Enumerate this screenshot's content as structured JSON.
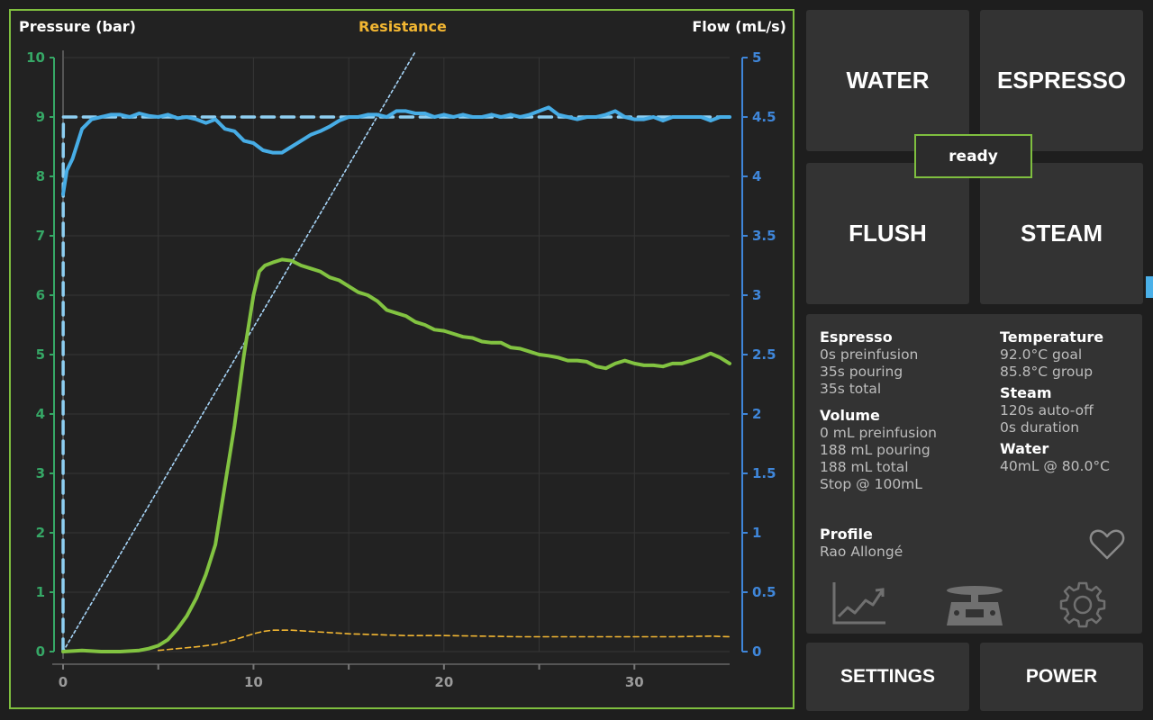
{
  "chart": {
    "left_axis_title": "Pressure (bar)",
    "center_title": "Resistance",
    "right_axis_title": "Flow (mL/s)",
    "colors": {
      "pressure": "#82c341",
      "flow": "#47ade6",
      "flow_goal": "#8ecff2",
      "weight_flow": "#a6d4f7",
      "resistance": "#f2b632",
      "left_axis": "#36a766",
      "right_axis": "#3f86d9",
      "grid": "#363636"
    }
  },
  "chart_data": {
    "type": "line",
    "xlabel": "",
    "ylabel": "Pressure (bar)",
    "y2label": "Flow (mL/s)",
    "xlim": [
      0,
      35
    ],
    "ylim": [
      0,
      10
    ],
    "y2lim": [
      0,
      5
    ],
    "xticks": [
      0,
      10,
      20,
      30
    ],
    "yticks": [
      0,
      1,
      2,
      3,
      4,
      5,
      6,
      7,
      8,
      9,
      10
    ],
    "y2ticks": [
      0,
      0.5,
      1,
      1.5,
      2,
      2.5,
      3,
      3.5,
      4,
      4.5,
      5
    ],
    "grid": true,
    "series": [
      {
        "name": "Pressure (bar)",
        "axis": "left",
        "style": "solid",
        "x": [
          0,
          1,
          2,
          3,
          4,
          4.5,
          5,
          5.5,
          6,
          6.5,
          7,
          7.5,
          8,
          8.5,
          9,
          9.5,
          10,
          10.3,
          10.6,
          11,
          11.5,
          12,
          12.5,
          13,
          13.5,
          14,
          14.5,
          15,
          15.5,
          16,
          16.5,
          17,
          17.5,
          18,
          18.5,
          19,
          19.5,
          20,
          20.5,
          21,
          21.5,
          22,
          22.5,
          23,
          23.5,
          24,
          24.5,
          25,
          25.5,
          26,
          26.5,
          27,
          27.5,
          28,
          28.5,
          29,
          29.5,
          30,
          30.5,
          31,
          31.5,
          32,
          32.5,
          33,
          33.5,
          34,
          34.5,
          35
        ],
        "y": [
          0,
          0.02,
          0,
          0,
          0.02,
          0.05,
          0.1,
          0.2,
          0.38,
          0.6,
          0.9,
          1.3,
          1.8,
          2.8,
          3.8,
          5.0,
          6.0,
          6.4,
          6.5,
          6.55,
          6.6,
          6.58,
          6.5,
          6.45,
          6.4,
          6.3,
          6.25,
          6.15,
          6.05,
          6.0,
          5.9,
          5.75,
          5.7,
          5.65,
          5.55,
          5.5,
          5.42,
          5.4,
          5.35,
          5.3,
          5.28,
          5.22,
          5.2,
          5.2,
          5.12,
          5.1,
          5.05,
          5.0,
          4.98,
          4.95,
          4.9,
          4.9,
          4.88,
          4.8,
          4.77,
          4.85,
          4.9,
          4.85,
          4.82,
          4.82,
          4.8,
          4.85,
          4.85,
          4.9,
          4.95,
          5.02,
          4.95,
          4.85
        ]
      },
      {
        "name": "Flow (mL/s)",
        "axis": "right",
        "style": "solid",
        "x": [
          0,
          0.2,
          0.5,
          0.8,
          1,
          1.5,
          2,
          2.5,
          3,
          3.5,
          4,
          4.5,
          5,
          5.5,
          6,
          6.5,
          7,
          7.5,
          8,
          8.5,
          9,
          9.5,
          10,
          10.5,
          11,
          11.5,
          12,
          12.5,
          13,
          13.5,
          14,
          14.5,
          15,
          15.5,
          16,
          16.5,
          17,
          17.5,
          18,
          18.5,
          19,
          19.5,
          20,
          20.5,
          21,
          21.5,
          22,
          22.5,
          23,
          23.5,
          24,
          24.5,
          25,
          25.5,
          26,
          26.5,
          27,
          27.5,
          28,
          28.5,
          29,
          29.5,
          30,
          30.5,
          31,
          31.5,
          32,
          32.5,
          33,
          33.5,
          34,
          34.5,
          35
        ],
        "y": [
          3.85,
          4.05,
          4.15,
          4.3,
          4.4,
          4.48,
          4.5,
          4.52,
          4.52,
          4.5,
          4.53,
          4.51,
          4.5,
          4.52,
          4.49,
          4.5,
          4.48,
          4.45,
          4.48,
          4.4,
          4.38,
          4.3,
          4.28,
          4.22,
          4.2,
          4.2,
          4.25,
          4.3,
          4.35,
          4.38,
          4.42,
          4.47,
          4.5,
          4.5,
          4.52,
          4.52,
          4.5,
          4.55,
          4.55,
          4.53,
          4.53,
          4.5,
          4.52,
          4.5,
          4.52,
          4.5,
          4.5,
          4.52,
          4.5,
          4.52,
          4.5,
          4.52,
          4.55,
          4.58,
          4.52,
          4.5,
          4.48,
          4.5,
          4.5,
          4.52,
          4.55,
          4.5,
          4.48,
          4.48,
          4.5,
          4.47,
          4.5,
          4.5,
          4.5,
          4.5,
          4.47,
          4.5,
          4.5
        ]
      },
      {
        "name": "Flow goal",
        "axis": "right",
        "style": "dashed",
        "x": [
          0,
          0.01,
          0.02,
          35
        ],
        "y": [
          0,
          4.2,
          4.5,
          4.5
        ]
      },
      {
        "name": "Weight flow",
        "axis": "left",
        "style": "dotted",
        "x": [
          0,
          18.5
        ],
        "y": [
          0,
          10.1
        ]
      },
      {
        "name": "Resistance",
        "axis": "left",
        "style": "dashed",
        "x": [
          5,
          6,
          7,
          8,
          9,
          10,
          10.5,
          11,
          12,
          13,
          14,
          15,
          16,
          18,
          20,
          22,
          24,
          26,
          28,
          30,
          32,
          34,
          35
        ],
        "y": [
          0.02,
          0.05,
          0.08,
          0.12,
          0.2,
          0.3,
          0.34,
          0.36,
          0.36,
          0.34,
          0.32,
          0.3,
          0.29,
          0.27,
          0.27,
          0.26,
          0.25,
          0.25,
          0.25,
          0.25,
          0.25,
          0.26,
          0.25
        ]
      }
    ]
  },
  "buttons": {
    "water": "WATER",
    "espresso": "ESPRESSO",
    "flush": "FLUSH",
    "steam": "STEAM",
    "settings": "SETTINGS",
    "power": "POWER"
  },
  "status": "ready",
  "info": {
    "espresso": {
      "title": "Espresso",
      "preinfusion": "0s preinfusion",
      "pouring": "35s pouring",
      "total": "35s total"
    },
    "volume": {
      "title": "Volume",
      "preinfusion": "0 mL preinfusion",
      "pouring": "188 mL pouring",
      "total": "188 mL total",
      "stop": "Stop @ 100mL"
    },
    "temperature": {
      "title": "Temperature",
      "goal": "92.0°C goal",
      "group": "85.8°C group"
    },
    "steam": {
      "title": "Steam",
      "auto_off": "120s auto-off",
      "duration": "0s duration"
    },
    "water": {
      "title": "Water",
      "setting": "40mL @ 80.0°C"
    },
    "profile": {
      "title": "Profile",
      "name": "Rao Allongé"
    }
  },
  "icons": {
    "heart": "heart-icon",
    "chart": "chart-icon",
    "scale": "scale-icon",
    "settings": "gear-icon"
  }
}
